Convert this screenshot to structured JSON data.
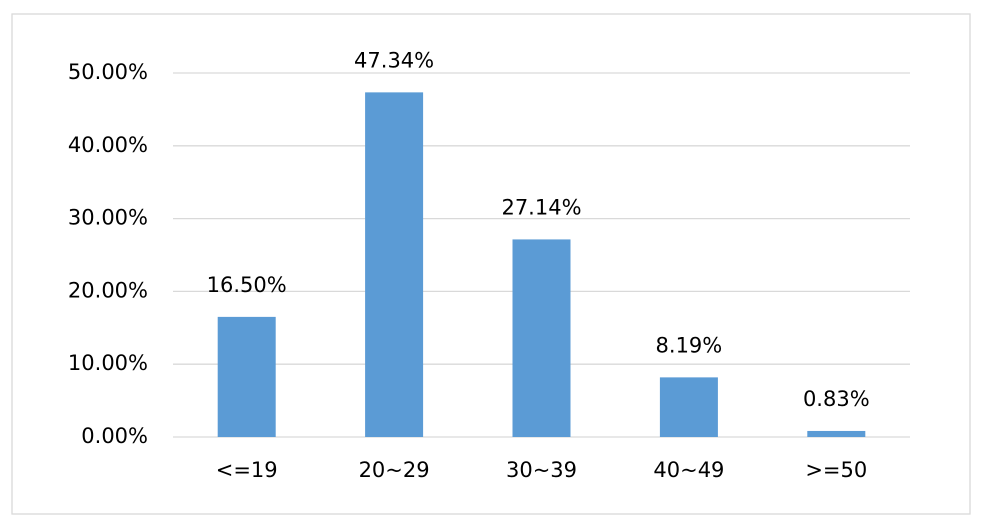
{
  "chart_data": {
    "type": "bar",
    "categories": [
      "<=19",
      "20~29",
      "30~39",
      "40~49",
      ">=50"
    ],
    "values": [
      16.5,
      47.34,
      27.14,
      8.19,
      0.83
    ],
    "value_labels": [
      "16.50%",
      "47.34%",
      "27.14%",
      "8.19%",
      "0.83%"
    ],
    "color": "#5b9bd5",
    "ylim": [
      0,
      50
    ],
    "yticks": [
      {
        "value": 0,
        "label": "0.00%"
      },
      {
        "value": 10,
        "label": "10.00%"
      },
      {
        "value": 20,
        "label": "20.00%"
      },
      {
        "value": 30,
        "label": "30.00%"
      },
      {
        "value": 40,
        "label": "40.00%"
      },
      {
        "value": 50,
        "label": "50.00%"
      }
    ],
    "grid": true
  }
}
